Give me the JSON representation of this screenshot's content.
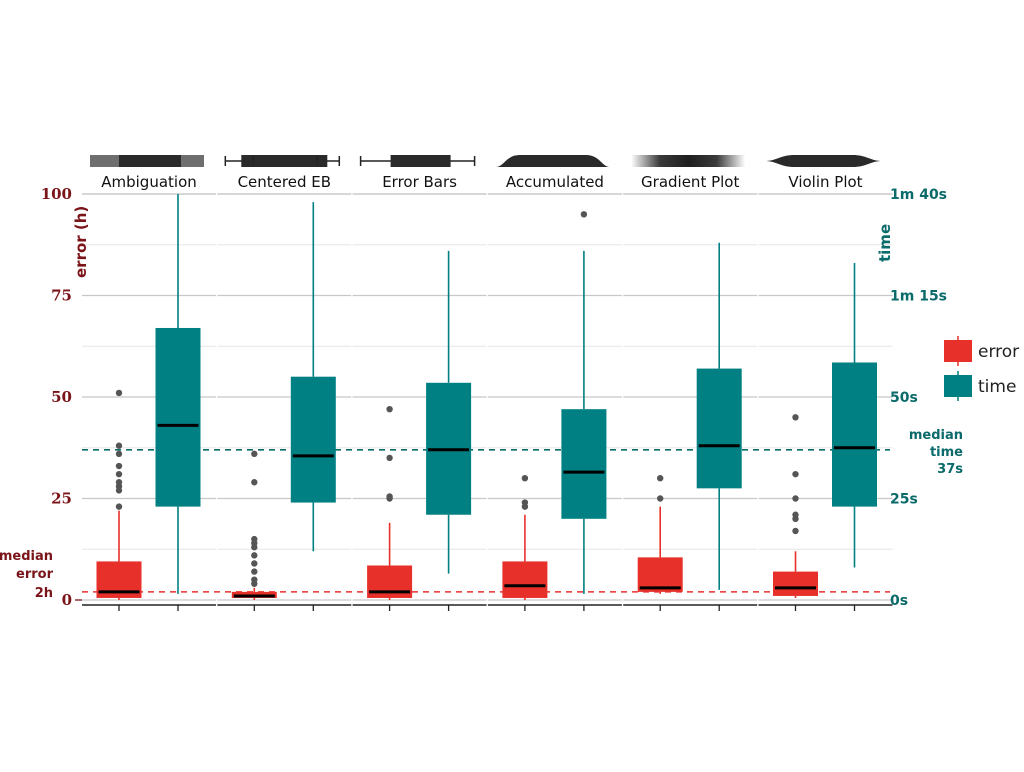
{
  "colors": {
    "error": "#e8302b",
    "time": "#008083",
    "error_axis": "#7a1418",
    "time_axis": "#0b6a6a",
    "outlier": "#555555",
    "grid": "#c8c8c8",
    "grid_minor": "#e6e6e6"
  },
  "chart_data": {
    "type": "boxplot",
    "panels": [
      "Ambiguation",
      "Centered EB",
      "Error Bars",
      "Accumulated",
      "Gradient Plot",
      "Violin Plot"
    ],
    "left_axis": {
      "label": "error (h)",
      "ylim": [
        0,
        100
      ],
      "ticks": [
        0,
        25,
        50,
        75,
        100
      ],
      "tick_labels": [
        "0",
        "25",
        "50",
        "75",
        "100"
      ]
    },
    "right_axis": {
      "label": "time",
      "ylim_seconds": [
        0,
        100
      ],
      "ticks": [
        0,
        25,
        50,
        75,
        100
      ],
      "tick_labels": [
        "0s",
        "25s",
        "50s",
        "1m 15s",
        "1m 40s"
      ]
    },
    "legend": {
      "placement": "right",
      "entries": [
        {
          "key": "error",
          "label": "error"
        },
        {
          "key": "time",
          "label": "time"
        }
      ]
    },
    "reference_lines": [
      {
        "series": "error",
        "value": 2,
        "label_lines": [
          "median",
          "error",
          "2h"
        ]
      },
      {
        "series": "time",
        "value": 37,
        "label_lines": [
          "median",
          "time",
          "37s"
        ]
      }
    ],
    "series": [
      {
        "key": "error",
        "boxes": [
          {
            "min": 0,
            "q1": 0.5,
            "median": 2,
            "q3": 9.5,
            "max": 22,
            "outliers": [
              23,
              27,
              28,
              29,
              31,
              33,
              36,
              38,
              51
            ]
          },
          {
            "min": 0,
            "q1": 0.5,
            "median": 1,
            "q3": 2,
            "max": 3,
            "outliers": [
              4,
              5,
              7,
              9,
              11,
              13,
              14,
              15,
              29,
              36
            ]
          },
          {
            "min": 0,
            "q1": 0.5,
            "median": 2,
            "q3": 8.5,
            "max": 19,
            "outliers": [
              25,
              25.5,
              35,
              47
            ]
          },
          {
            "min": 0,
            "q1": 0.5,
            "median": 3.5,
            "q3": 9.5,
            "max": 21,
            "outliers": [
              23,
              24,
              30
            ]
          },
          {
            "min": 1.5,
            "q1": 2,
            "median": 3,
            "q3": 10.5,
            "max": 23,
            "outliers": [
              25,
              30
            ]
          },
          {
            "min": 0.5,
            "q1": 1,
            "median": 3,
            "q3": 7,
            "max": 12,
            "outliers": [
              17,
              20,
              21,
              25,
              31,
              45
            ]
          }
        ]
      },
      {
        "key": "time",
        "boxes": [
          {
            "min": 1.5,
            "q1": 23,
            "median": 43,
            "q3": 67,
            "max": 100,
            "outliers": []
          },
          {
            "min": 12,
            "q1": 24,
            "median": 35.5,
            "q3": 55,
            "max": 98,
            "outliers": []
          },
          {
            "min": 6.5,
            "q1": 21,
            "median": 37,
            "q3": 53.5,
            "max": 86,
            "outliers": []
          },
          {
            "min": 1.5,
            "q1": 20,
            "median": 31.5,
            "q3": 47,
            "max": 86,
            "outliers": [
              95
            ]
          },
          {
            "min": 2.5,
            "q1": 27.5,
            "median": 38,
            "q3": 57,
            "max": 88,
            "outliers": []
          },
          {
            "min": 8,
            "q1": 23,
            "median": 37.5,
            "q3": 58.5,
            "max": 83,
            "outliers": []
          }
        ]
      }
    ]
  }
}
